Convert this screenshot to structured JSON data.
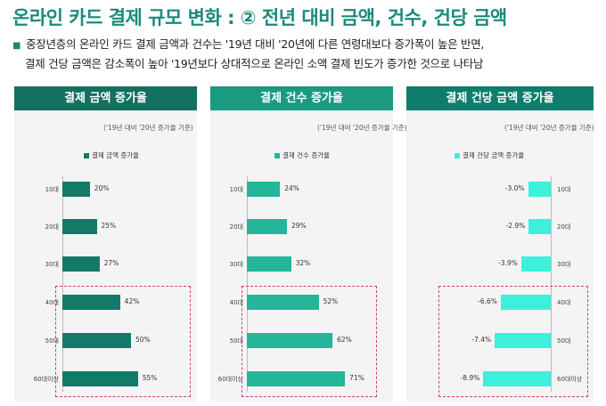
{
  "title": "온라인 카드 결제 규모 변화 : ② 전년 대비 금액, 건수, 건당 금액",
  "description": {
    "bullet": "■",
    "line1": "중장년층의 온라인 카드 결제 금액과 건수는 '19년 대비 '20년에 다른 연령대보다 증가폭이 높은 반면,",
    "line2": "결제 건당 금액은 감소폭이 높아 '19년보다 상대적으로 온라인 소액 결제 빈도가 증가한 것으로 나타남"
  },
  "colors": {
    "title": "#1a8a78",
    "head_amount": "#13705f",
    "head_count": "#1a9a80",
    "head_unit": "#0f7d6d",
    "bar_amount": "#127a67",
    "bar_count": "#23b698",
    "bar_unit": "#3cf0dc",
    "highlight": "#d23a7a"
  },
  "chart_data": [
    {
      "type": "bar",
      "orientation": "horizontal",
      "title": "결제 금액 증가율",
      "note": "('19년 대비 '20년 증가율 기준)",
      "legend": "결제 금액 증가율",
      "categories": [
        "10대",
        "20대",
        "30대",
        "40대",
        "50대",
        "60대이상"
      ],
      "values": [
        20,
        25,
        27,
        42,
        50,
        55
      ],
      "value_labels": [
        "20%",
        "25%",
        "27%",
        "42%",
        "50%",
        "55%"
      ],
      "xlim": [
        0,
        100
      ],
      "highlighted": [
        "40대",
        "50대",
        "60대이상"
      ]
    },
    {
      "type": "bar",
      "orientation": "horizontal",
      "title": "결제 건수 증가율",
      "note": "('19년 대비 '20년 증가율 기준)",
      "legend": "결제 건수 증가율",
      "categories": [
        "10대",
        "20대",
        "30대",
        "40대",
        "50대",
        "60대이상"
      ],
      "values": [
        24,
        29,
        32,
        52,
        62,
        71
      ],
      "value_labels": [
        "24%",
        "29%",
        "32%",
        "52%",
        "62%",
        "71%"
      ],
      "xlim": [
        0,
        100
      ],
      "highlighted": [
        "40대",
        "50대",
        "60대이상"
      ]
    },
    {
      "type": "bar",
      "orientation": "horizontal",
      "title": "결제 건당 금액 증가율",
      "note": "('19년 대비 '20년 증가율 기준)",
      "legend": "결제 건당 금액 증가율",
      "categories": [
        "10대",
        "20대",
        "30대",
        "40대",
        "50대",
        "60대이상"
      ],
      "values": [
        -3.0,
        -2.9,
        -3.9,
        -6.6,
        -7.4,
        -8.9
      ],
      "value_labels": [
        "-3.0%",
        "-2.9%",
        "-3.9%",
        "-6.6%",
        "-7.4%",
        "-8.9%"
      ],
      "xlim": [
        -13,
        0
      ],
      "highlighted": [
        "40대",
        "50대",
        "60대이상"
      ]
    }
  ]
}
